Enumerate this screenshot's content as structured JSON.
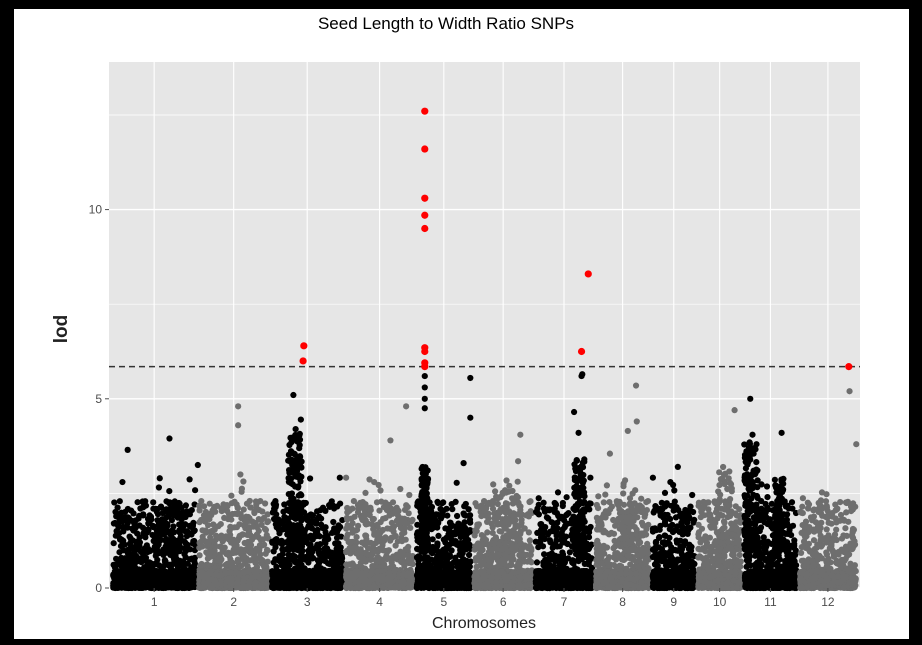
{
  "chart_data": {
    "type": "scatter",
    "subtype": "manhattan",
    "title": "Seed Length to Width Ratio SNPs",
    "xlabel": "Chromosomes",
    "ylabel": "lod",
    "ylim": [
      0,
      13.9
    ],
    "yticks": [
      0,
      5,
      10
    ],
    "grid": true,
    "threshold": 5.85,
    "colors": {
      "odd": "#000000",
      "even": "#6e6e6e",
      "significant": "#ff0000",
      "panel": "#e6e6e6",
      "gridline": "#ffffff",
      "threshold_line": "#333333"
    },
    "chromosomes": [
      {
        "label": "1",
        "start": 0,
        "end": 11.5
      },
      {
        "label": "2",
        "start": 11.5,
        "end": 21.3
      },
      {
        "label": "3",
        "start": 21.3,
        "end": 31.2
      },
      {
        "label": "4",
        "start": 31.2,
        "end": 40.7
      },
      {
        "label": "5",
        "start": 40.7,
        "end": 48.4
      },
      {
        "label": "6",
        "start": 48.4,
        "end": 56.6
      },
      {
        "label": "7",
        "start": 56.6,
        "end": 64.7
      },
      {
        "label": "8",
        "start": 64.7,
        "end": 72.3
      },
      {
        "label": "9",
        "start": 72.3,
        "end": 78.4
      },
      {
        "label": "10",
        "start": 78.4,
        "end": 84.6
      },
      {
        "label": "11",
        "start": 84.6,
        "end": 92.0
      },
      {
        "label": "12",
        "start": 92.0,
        "end": 100.0
      }
    ],
    "xlim": [
      -0.3,
      100.3
    ],
    "peaks": [
      {
        "chrom": 0,
        "x": 1.5,
        "y": 2.8
      },
      {
        "chrom": 0,
        "x": 2.2,
        "y": 3.65
      },
      {
        "chrom": 0,
        "x": 6.5,
        "y": 2.9
      },
      {
        "chrom": 0,
        "x": 7.8,
        "y": 3.95
      },
      {
        "chrom": 0,
        "x": 11.6,
        "y": 3.25
      },
      {
        "chrom": 1,
        "x": 17.0,
        "y": 4.8
      },
      {
        "chrom": 1,
        "x": 17.0,
        "y": 4.3
      },
      {
        "chrom": 1,
        "x": 17.3,
        "y": 3.0
      },
      {
        "chrom": 2,
        "x": 24.4,
        "y": 5.1
      },
      {
        "chrom": 2,
        "x": 25.4,
        "y": 4.45
      },
      {
        "chrom": 2,
        "x": 24.7,
        "y": 4.2
      },
      {
        "chrom": 3,
        "x": 39.5,
        "y": 4.8
      },
      {
        "chrom": 3,
        "x": 37.4,
        "y": 3.9
      },
      {
        "chrom": 4,
        "x": 42.0,
        "y": 5.6
      },
      {
        "chrom": 4,
        "x": 42.0,
        "y": 5.3
      },
      {
        "chrom": 4,
        "x": 42.0,
        "y": 5.0
      },
      {
        "chrom": 4,
        "x": 42.0,
        "y": 4.75
      },
      {
        "chrom": 4,
        "x": 48.1,
        "y": 5.55
      },
      {
        "chrom": 4,
        "x": 48.1,
        "y": 4.5
      },
      {
        "chrom": 4,
        "x": 47.2,
        "y": 3.3
      },
      {
        "chrom": 5,
        "x": 54.8,
        "y": 4.05
      },
      {
        "chrom": 5,
        "x": 54.5,
        "y": 3.35
      },
      {
        "chrom": 6,
        "x": 62.0,
        "y": 4.65
      },
      {
        "chrom": 6,
        "x": 63.1,
        "y": 5.65
      },
      {
        "chrom": 6,
        "x": 63.0,
        "y": 5.6
      },
      {
        "chrom": 6,
        "x": 62.6,
        "y": 4.1
      },
      {
        "chrom": 6,
        "x": 61.0,
        "y": 2.4
      },
      {
        "chrom": 7,
        "x": 70.3,
        "y": 5.35
      },
      {
        "chrom": 7,
        "x": 70.4,
        "y": 4.4
      },
      {
        "chrom": 7,
        "x": 69.2,
        "y": 4.15
      },
      {
        "chrom": 7,
        "x": 66.8,
        "y": 3.55
      },
      {
        "chrom": 8,
        "x": 75.9,
        "y": 3.2
      },
      {
        "chrom": 9,
        "x": 83.5,
        "y": 4.7
      },
      {
        "chrom": 10,
        "x": 85.6,
        "y": 5.0
      },
      {
        "chrom": 10,
        "x": 89.8,
        "y": 4.1
      },
      {
        "chrom": 10,
        "x": 85.9,
        "y": 4.05
      },
      {
        "chrom": 11,
        "x": 98.9,
        "y": 5.2
      },
      {
        "chrom": 11,
        "x": 99.8,
        "y": 3.8
      }
    ],
    "significant_points": [
      {
        "x": 25.8,
        "y": 6.4
      },
      {
        "x": 25.7,
        "y": 6.0
      },
      {
        "x": 42.0,
        "y": 12.6
      },
      {
        "x": 42.0,
        "y": 11.6
      },
      {
        "x": 42.0,
        "y": 10.3
      },
      {
        "x": 42.0,
        "y": 9.85
      },
      {
        "x": 42.0,
        "y": 9.5
      },
      {
        "x": 42.0,
        "y": 6.35
      },
      {
        "x": 42.0,
        "y": 6.25
      },
      {
        "x": 42.0,
        "y": 5.95
      },
      {
        "x": 42.0,
        "y": 5.85
      },
      {
        "x": 63.9,
        "y": 8.3
      },
      {
        "x": 63.0,
        "y": 6.25
      },
      {
        "x": 98.8,
        "y": 5.85
      }
    ]
  }
}
